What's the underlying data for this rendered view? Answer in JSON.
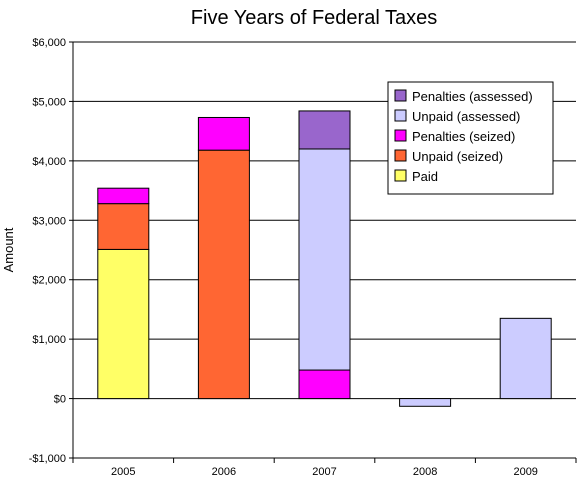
{
  "chart_data": {
    "type": "bar",
    "stacked": true,
    "title": "Five Years of Federal Taxes",
    "xlabel": "",
    "ylabel": "Amount",
    "categories": [
      "2005",
      "2006",
      "2007",
      "2008",
      "2009"
    ],
    "ylim": [
      -1000,
      6000
    ],
    "yticks": [
      -1000,
      0,
      1000,
      2000,
      3000,
      4000,
      5000,
      6000
    ],
    "ytick_labels": [
      "-$1,000",
      "$0",
      "$1,000",
      "$2,000",
      "$3,000",
      "$4,000",
      "$5,000",
      "$6,000"
    ],
    "grid": true,
    "legend_position": "top-right",
    "series": [
      {
        "name": "Paid",
        "color": "#ffff66",
        "values": [
          2510,
          0,
          0,
          0,
          0
        ]
      },
      {
        "name": "Penalties (seized)",
        "color": "#ff00ff",
        "values": [
          0,
          0,
          480,
          0,
          0
        ]
      },
      {
        "name": "Unpaid (seized)",
        "color": "#ff6633",
        "values": [
          770,
          4180,
          0,
          0,
          0
        ]
      },
      {
        "name": "Penalties (seized)",
        "color": "#ff00ff",
        "values": [
          260,
          550,
          0,
          0,
          0
        ]
      },
      {
        "name": "Unpaid (assessed)",
        "color": "#ccccff",
        "values": [
          0,
          0,
          3720,
          -130,
          1350
        ]
      },
      {
        "name": "Penalties (assessed)",
        "color": "#9966cc",
        "values": [
          0,
          0,
          640,
          0,
          0
        ]
      }
    ],
    "legend": [
      {
        "name": "Penalties (assessed)",
        "color": "#9966cc"
      },
      {
        "name": "Unpaid (assessed)",
        "color": "#ccccff"
      },
      {
        "name": "Penalties (seized)",
        "color": "#ff00ff"
      },
      {
        "name": "Unpaid (seized)",
        "color": "#ff6633"
      },
      {
        "name": "Paid",
        "color": "#ffff66"
      }
    ]
  }
}
